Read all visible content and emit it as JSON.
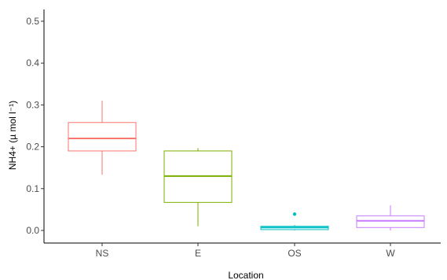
{
  "chart_data": {
    "type": "boxplot",
    "xlabel": "Location",
    "ylabel": "NH4+ (µ mol l⁻¹)",
    "ylim": [
      0,
      0.5
    ],
    "ytick_values": [
      0.0,
      0.1,
      0.2,
      0.3,
      0.4,
      0.5
    ],
    "ytick_labels": [
      "0.0",
      "0.1",
      "0.2",
      "0.3",
      "0.4",
      "0.5"
    ],
    "grid": false,
    "legend": "none",
    "categories": [
      "NS",
      "E",
      "OS",
      "W"
    ],
    "boxes": [
      {
        "category": "NS",
        "color": "#F8766D",
        "whisker_low": 0.133,
        "q1": 0.19,
        "median": 0.22,
        "q3": 0.258,
        "whisker_high": 0.31,
        "outliers": []
      },
      {
        "category": "E",
        "color": "#7CAE00",
        "whisker_low": 0.01,
        "q1": 0.067,
        "median": 0.13,
        "q3": 0.19,
        "whisker_high": 0.197,
        "outliers": []
      },
      {
        "category": "OS",
        "color": "#00BFC4",
        "whisker_low": 0.0,
        "q1": 0.002,
        "median": 0.007,
        "q3": 0.01,
        "whisker_high": 0.013,
        "outliers": [
          0.039
        ]
      },
      {
        "category": "W",
        "color": "#C77CFF",
        "whisker_low": 0.0,
        "q1": 0.007,
        "median": 0.023,
        "q3": 0.035,
        "whisker_high": 0.06,
        "outliers": []
      }
    ]
  }
}
